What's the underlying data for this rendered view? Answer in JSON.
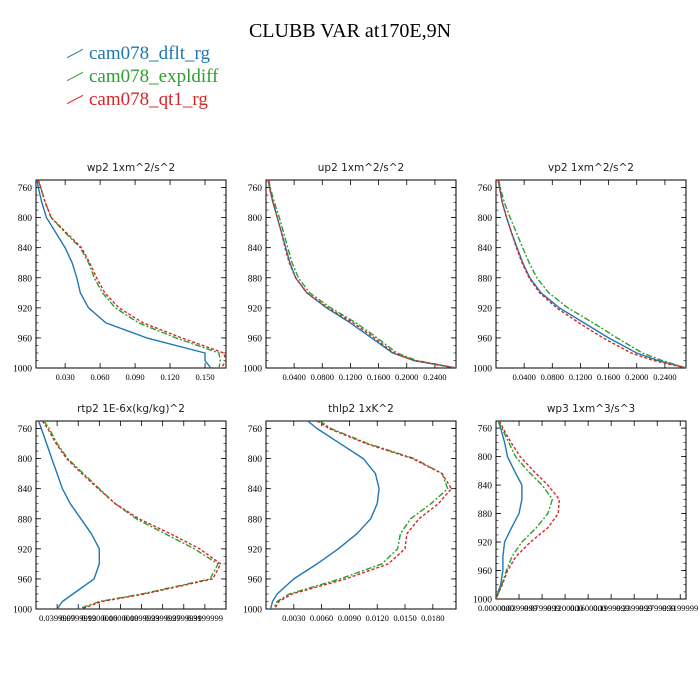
{
  "figure": {
    "title": "CLUBB VAR at170E,9N",
    "legend": [
      {
        "name": "cam078_dflt_rg",
        "color": "#1f77b4",
        "dash": ""
      },
      {
        "name": "cam078_expldiff",
        "color": "#2ca02c",
        "dash": "6,2,2,2"
      },
      {
        "name": "cam078_qt1_rg",
        "color": "#d62728",
        "dash": "3,2"
      }
    ]
  },
  "chart_data": [
    {
      "type": "line",
      "title": "wp2   1xm^2/s^2",
      "xlim": [
        0.005,
        0.168
      ],
      "ylim": [
        1000,
        750
      ],
      "grid": false,
      "xticks": [
        0.03,
        0.06,
        0.09,
        0.12,
        0.15
      ],
      "xticklabels": [
        "0.030",
        "0.060",
        "0.090",
        "0.120",
        "0.150"
      ],
      "yticks": [
        760,
        800,
        840,
        880,
        920,
        960,
        1000
      ],
      "series": [
        {
          "name": "cam078_dflt_rg",
          "y": [
            750,
            760,
            780,
            800,
            820,
            840,
            860,
            880,
            900,
            920,
            940,
            960,
            980,
            990,
            1000
          ],
          "x": [
            0.006,
            0.007,
            0.01,
            0.014,
            0.022,
            0.03,
            0.036,
            0.04,
            0.043,
            0.05,
            0.065,
            0.1,
            0.15,
            0.15,
            0.155
          ]
        },
        {
          "name": "cam078_expldiff",
          "y": [
            750,
            760,
            780,
            800,
            820,
            840,
            860,
            880,
            900,
            920,
            940,
            960,
            980,
            990,
            1000
          ],
          "x": [
            0.007,
            0.009,
            0.013,
            0.018,
            0.03,
            0.043,
            0.05,
            0.055,
            0.062,
            0.073,
            0.093,
            0.125,
            0.162,
            0.163,
            0.162
          ]
        },
        {
          "name": "cam078_qt1_rg",
          "y": [
            750,
            760,
            780,
            800,
            820,
            840,
            860,
            880,
            900,
            920,
            940,
            960,
            980,
            990,
            1000
          ],
          "x": [
            0.007,
            0.009,
            0.013,
            0.018,
            0.031,
            0.044,
            0.051,
            0.057,
            0.064,
            0.076,
            0.097,
            0.13,
            0.166,
            0.168,
            0.164
          ]
        }
      ]
    },
    {
      "type": "line",
      "title": "up2   1xm^2/s^2",
      "xlim": [
        0.0,
        0.27
      ],
      "ylim": [
        1000,
        750
      ],
      "grid": false,
      "xticks": [
        0.04,
        0.08,
        0.12,
        0.16,
        0.2,
        0.24
      ],
      "xticklabels": [
        "0.0400",
        "0.0800",
        "0.1200",
        "0.1600",
        "0.2000",
        "0.2400"
      ],
      "yticks": [
        760,
        800,
        840,
        880,
        920,
        960,
        1000
      ],
      "series": [
        {
          "name": "cam078_dflt_rg",
          "y": [
            750,
            760,
            780,
            800,
            820,
            840,
            860,
            880,
            900,
            920,
            940,
            960,
            980,
            990,
            1000
          ],
          "x": [
            0.003,
            0.005,
            0.01,
            0.016,
            0.022,
            0.028,
            0.034,
            0.042,
            0.058,
            0.086,
            0.12,
            0.15,
            0.18,
            0.21,
            0.27
          ]
        },
        {
          "name": "cam078_expldiff",
          "y": [
            750,
            760,
            780,
            800,
            820,
            840,
            860,
            880,
            900,
            920,
            940,
            960,
            980,
            990,
            1000
          ],
          "x": [
            0.004,
            0.006,
            0.012,
            0.019,
            0.025,
            0.031,
            0.037,
            0.046,
            0.062,
            0.092,
            0.128,
            0.158,
            0.186,
            0.214,
            0.27
          ]
        },
        {
          "name": "cam078_qt1_rg",
          "y": [
            750,
            760,
            780,
            800,
            820,
            840,
            860,
            880,
            900,
            920,
            940,
            960,
            980,
            990,
            1000
          ],
          "x": [
            0.003,
            0.005,
            0.01,
            0.016,
            0.022,
            0.027,
            0.033,
            0.042,
            0.058,
            0.088,
            0.124,
            0.154,
            0.182,
            0.21,
            0.27
          ]
        }
      ]
    },
    {
      "type": "line",
      "title": "vp2   1xm^2/s^2",
      "xlim": [
        0.0,
        0.27
      ],
      "ylim": [
        1000,
        750
      ],
      "grid": false,
      "xticks": [
        0.04,
        0.08,
        0.12,
        0.16,
        0.2,
        0.24
      ],
      "xticklabels": [
        "0.0400",
        "0.0800",
        "0.1200",
        "0.1600",
        "0.2000",
        "0.2400"
      ],
      "yticks": [
        760,
        800,
        840,
        880,
        920,
        960,
        1000
      ],
      "series": [
        {
          "name": "cam078_dflt_rg",
          "y": [
            750,
            760,
            780,
            800,
            820,
            840,
            860,
            880,
            900,
            920,
            940,
            960,
            980,
            990,
            1000
          ],
          "x": [
            0.003,
            0.005,
            0.009,
            0.015,
            0.022,
            0.03,
            0.038,
            0.048,
            0.064,
            0.09,
            0.125,
            0.16,
            0.2,
            0.23,
            0.27
          ]
        },
        {
          "name": "cam078_expldiff",
          "y": [
            750,
            760,
            780,
            800,
            820,
            840,
            860,
            880,
            900,
            920,
            940,
            960,
            980,
            990,
            1000
          ],
          "x": [
            0.004,
            0.006,
            0.012,
            0.02,
            0.029,
            0.038,
            0.047,
            0.058,
            0.075,
            0.102,
            0.138,
            0.172,
            0.208,
            0.236,
            0.27
          ]
        },
        {
          "name": "cam078_qt1_rg",
          "y": [
            750,
            760,
            780,
            800,
            820,
            840,
            860,
            880,
            900,
            920,
            940,
            960,
            980,
            990,
            1000
          ],
          "x": [
            0.003,
            0.005,
            0.009,
            0.015,
            0.022,
            0.029,
            0.037,
            0.047,
            0.062,
            0.086,
            0.118,
            0.152,
            0.192,
            0.224,
            0.27
          ]
        }
      ]
    },
    {
      "type": "line",
      "title": "rtp2   1E-6x(kg/kg)^2",
      "xlim": [
        0.0,
        0.36
      ],
      "ylim": [
        1000,
        750
      ],
      "grid": false,
      "xticks": [
        0.04,
        0.08,
        0.12,
        0.16,
        0.2,
        0.24,
        0.28,
        0.32
      ],
      "xticklabels": [
        "0.0399999",
        "0.0799999",
        "0.1200000",
        "0.1600000",
        "0.1999999",
        "0.2399999",
        "0.2799999",
        "0.3199999"
      ],
      "yticks": [
        760,
        800,
        840,
        880,
        920,
        960,
        1000
      ],
      "series": [
        {
          "name": "cam078_dflt_rg",
          "y": [
            750,
            760,
            780,
            800,
            820,
            840,
            860,
            880,
            900,
            920,
            940,
            960,
            980,
            990,
            1000
          ],
          "x": [
            0.005,
            0.01,
            0.02,
            0.03,
            0.04,
            0.05,
            0.065,
            0.085,
            0.105,
            0.12,
            0.12,
            0.11,
            0.07,
            0.05,
            0.04
          ]
        },
        {
          "name": "cam078_expldiff",
          "y": [
            750,
            760,
            780,
            800,
            820,
            840,
            860,
            880,
            900,
            920,
            940,
            960,
            980,
            990,
            1000
          ],
          "x": [
            0.015,
            0.025,
            0.04,
            0.06,
            0.09,
            0.12,
            0.15,
            0.19,
            0.245,
            0.3,
            0.345,
            0.33,
            0.2,
            0.12,
            0.08
          ]
        },
        {
          "name": "cam078_qt1_rg",
          "y": [
            750,
            760,
            780,
            800,
            820,
            840,
            860,
            880,
            900,
            920,
            940,
            960,
            980,
            990,
            1000
          ],
          "x": [
            0.012,
            0.022,
            0.038,
            0.058,
            0.087,
            0.118,
            0.15,
            0.195,
            0.255,
            0.31,
            0.35,
            0.335,
            0.205,
            0.125,
            0.085
          ]
        }
      ]
    },
    {
      "type": "line",
      "title": "thlp2   1xK^2",
      "xlim": [
        0.0,
        0.0205
      ],
      "ylim": [
        1000,
        750
      ],
      "grid": false,
      "xticks": [
        0.003,
        0.006,
        0.009,
        0.012,
        0.015,
        0.018
      ],
      "xticklabels": [
        "0.0030",
        "0.0060",
        "0.0090",
        "0.0120",
        "0.0150",
        "0.0180"
      ],
      "yticks": [
        760,
        800,
        840,
        880,
        920,
        960,
        1000
      ],
      "series": [
        {
          "name": "cam078_dflt_rg",
          "y": [
            750,
            760,
            780,
            800,
            820,
            840,
            860,
            880,
            900,
            920,
            940,
            960,
            980,
            990,
            1000
          ],
          "x": [
            0.0045,
            0.0055,
            0.008,
            0.0105,
            0.0118,
            0.0122,
            0.012,
            0.0113,
            0.0098,
            0.0078,
            0.0055,
            0.003,
            0.0012,
            0.0007,
            0.0005
          ]
        },
        {
          "name": "cam078_expldiff",
          "y": [
            750,
            760,
            780,
            800,
            820,
            840,
            860,
            880,
            900,
            920,
            940,
            960,
            980,
            990,
            1000
          ],
          "x": [
            0.0058,
            0.007,
            0.011,
            0.016,
            0.019,
            0.0196,
            0.0178,
            0.0156,
            0.0145,
            0.0142,
            0.0125,
            0.008,
            0.0025,
            0.0012,
            0.0008
          ]
        },
        {
          "name": "cam078_qt1_rg",
          "y": [
            750,
            760,
            780,
            800,
            820,
            840,
            860,
            880,
            900,
            920,
            940,
            960,
            980,
            990,
            1000
          ],
          "x": [
            0.0055,
            0.0068,
            0.0108,
            0.0158,
            0.019,
            0.02,
            0.0186,
            0.0165,
            0.0152,
            0.015,
            0.0132,
            0.0086,
            0.0028,
            0.0014,
            0.0009
          ]
        }
      ]
    },
    {
      "type": "line",
      "title": "wp3   1xm^3/s^3",
      "xlim": [
        0.0,
        0.33
      ],
      "ylim": [
        1000,
        750
      ],
      "grid": false,
      "xticks": [
        0.0,
        0.0399999,
        0.0799999,
        0.12,
        0.16,
        0.1999999,
        0.2399999,
        0.2799999,
        0.3199999
      ],
      "xticklabels": [
        "0.0000000",
        "0.0399999",
        "0.0799999",
        "0.1200000",
        "0.1600000",
        "0.1999999",
        "0.2399999",
        "0.2799999",
        "0.3199999"
      ],
      "yticks": [
        760,
        800,
        840,
        880,
        920,
        960,
        1000
      ],
      "series": [
        {
          "name": "cam078_dflt_rg",
          "y": [
            750,
            760,
            780,
            800,
            820,
            840,
            860,
            880,
            900,
            920,
            940,
            960,
            980,
            990,
            1000
          ],
          "x": [
            0.004,
            0.008,
            0.015,
            0.02,
            0.032,
            0.045,
            0.045,
            0.04,
            0.027,
            0.015,
            0.012,
            0.012,
            0.008,
            0.004,
            0.0
          ]
        },
        {
          "name": "cam078_expldiff",
          "y": [
            750,
            760,
            780,
            800,
            820,
            840,
            860,
            880,
            900,
            920,
            940,
            960,
            980,
            990,
            1000
          ],
          "x": [
            0.004,
            0.01,
            0.022,
            0.034,
            0.055,
            0.08,
            0.098,
            0.09,
            0.07,
            0.045,
            0.028,
            0.018,
            0.01,
            0.005,
            0.0
          ]
        },
        {
          "name": "cam078_qt1_rg",
          "y": [
            750,
            760,
            780,
            800,
            820,
            840,
            860,
            880,
            900,
            920,
            940,
            960,
            980,
            990,
            1000
          ],
          "x": [
            0.006,
            0.012,
            0.026,
            0.042,
            0.065,
            0.09,
            0.11,
            0.108,
            0.09,
            0.06,
            0.035,
            0.02,
            0.011,
            0.005,
            0.0
          ]
        }
      ]
    }
  ]
}
